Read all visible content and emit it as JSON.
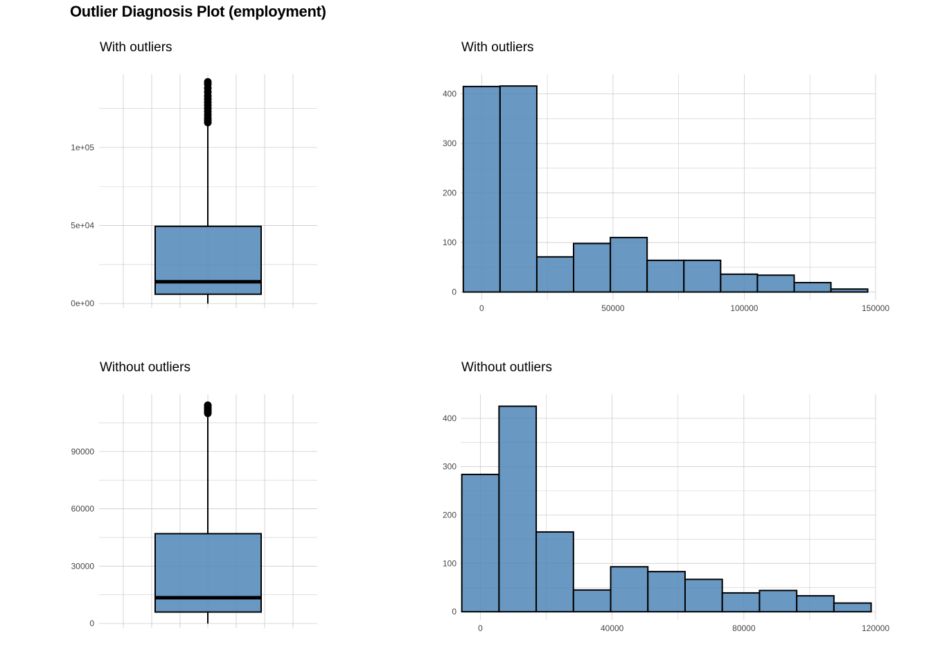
{
  "title": "Outlier Diagnosis Plot (employment)",
  "colors": {
    "fill": "#4f86b8",
    "stroke": "#000000",
    "grid": "#cccccc",
    "tick_text": "#444444"
  },
  "chart_data": [
    {
      "id": "box-with",
      "type": "box",
      "title": "With outliers",
      "ylim": [
        -3000,
        147000
      ],
      "y_ticks": [
        0,
        50000,
        100000
      ],
      "y_tick_labels": [
        "0e+00",
        "5e+04",
        "1e+05"
      ],
      "box": {
        "q1": 6000,
        "median": 14000,
        "q3": 49500,
        "whisker_low": 0,
        "whisker_high": 115000
      },
      "outliers": [
        116000,
        117500,
        119000,
        121000,
        123000,
        125000,
        127000,
        129000,
        131000,
        133000,
        135500,
        138000,
        140500,
        142000
      ]
    },
    {
      "id": "hist-with",
      "type": "bar",
      "title": "With outliers",
      "xlim": [
        -8000,
        150000
      ],
      "ylim": [
        -16,
        440
      ],
      "x_ticks": [
        0,
        50000,
        100000,
        150000
      ],
      "x_tick_labels": [
        "0",
        "50000",
        "100000",
        "150000"
      ],
      "y_ticks": [
        0,
        100,
        200,
        300,
        400
      ],
      "y_tick_labels": [
        "0",
        "100",
        "200",
        "300",
        "400"
      ],
      "bin_edges": [
        -7000,
        7000,
        21000,
        35000,
        49000,
        63000,
        77000,
        91000,
        105000,
        119000,
        133000,
        147000
      ],
      "values": [
        415,
        416,
        71,
        98,
        110,
        64,
        64,
        36,
        34,
        19,
        6
      ]
    },
    {
      "id": "box-without",
      "type": "box",
      "title": "Without outliers",
      "ylim": [
        -2500,
        120000
      ],
      "y_ticks": [
        0,
        30000,
        60000,
        90000
      ],
      "y_tick_labels": [
        "0",
        "30000",
        "60000",
        "90000"
      ],
      "box": {
        "q1": 6000,
        "median": 13500,
        "q3": 47000,
        "whisker_low": 0,
        "whisker_high": 109000
      },
      "outliers": [
        110000,
        110800,
        111600,
        112300,
        113000,
        113600,
        114200
      ]
    },
    {
      "id": "hist-without",
      "type": "bar",
      "title": "Without outliers",
      "xlim": [
        -6000,
        120000
      ],
      "ylim": [
        -17,
        450
      ],
      "x_ticks": [
        0,
        40000,
        80000,
        120000
      ],
      "x_tick_labels": [
        "0",
        "40000",
        "80000",
        "120000"
      ],
      "y_ticks": [
        0,
        100,
        200,
        300,
        400
      ],
      "y_tick_labels": [
        "0",
        "100",
        "200",
        "300",
        "400"
      ],
      "bin_edges": [
        -5650,
        5650,
        16950,
        28250,
        39550,
        50850,
        62150,
        73450,
        84750,
        96050,
        107350,
        118650
      ],
      "values": [
        284,
        425,
        165,
        45,
        93,
        83,
        67,
        39,
        44,
        33,
        18
      ]
    }
  ]
}
